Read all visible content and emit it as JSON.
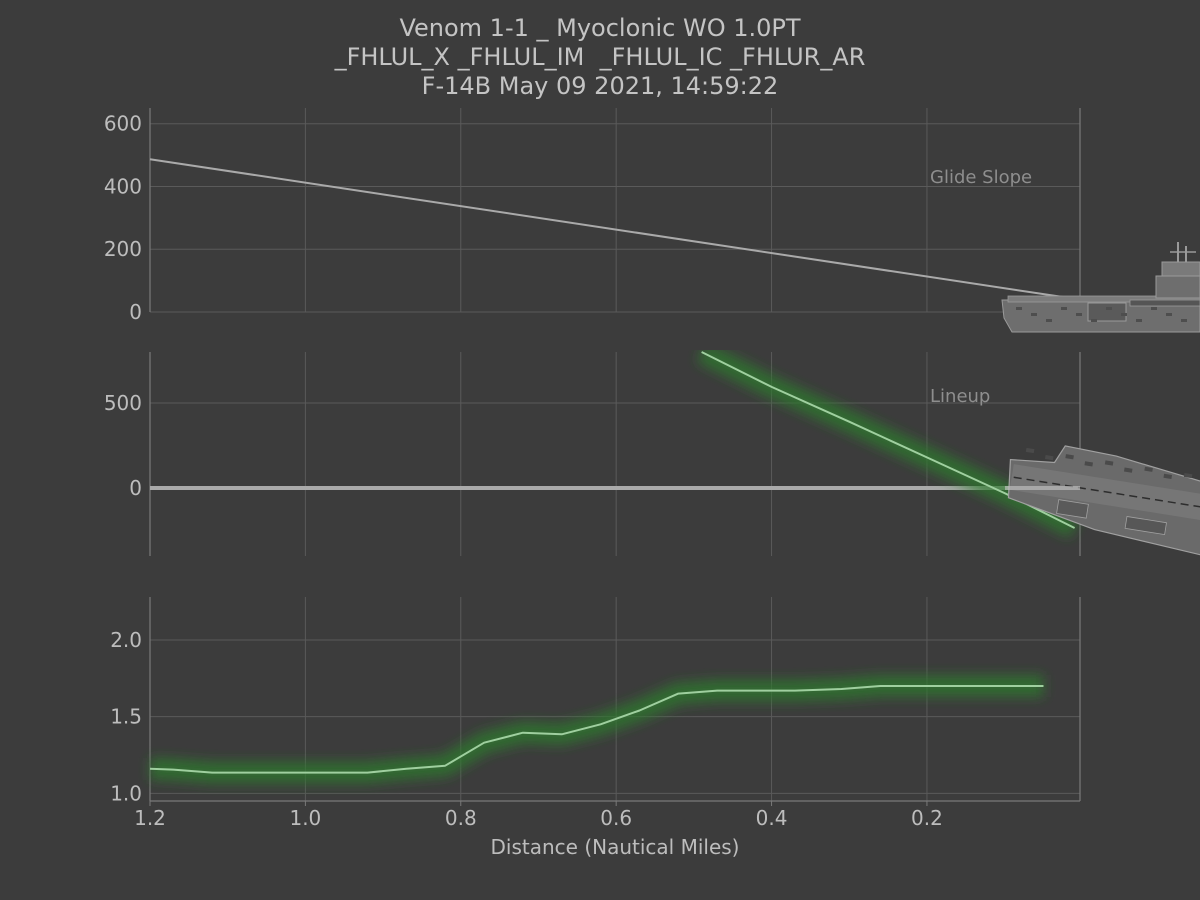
{
  "title_lines": [
    "Venom 1-1 _ Myoclonic WO 1.0PT",
    "_FHLUL_X _FHLUL_IM  _FHLUL_IC _FHLUR_AR",
    "F-14B May 09 2021, 14:59:22"
  ],
  "colors": {
    "background": "#3c3c3c",
    "grid": "#5a5a5a",
    "spine": "#7a7a7a",
    "text": "#bdbdbd",
    "reference_line": "#aaaaaa",
    "flight_path": "#9fcf9f",
    "flight_glow": "#2f7a2f",
    "ship": "#8a8a8a"
  },
  "chart_data": [
    {
      "type": "line",
      "annotation": "Glide Slope",
      "xlim": [
        1.2,
        0.0
      ],
      "ylim": [
        0,
        650
      ],
      "yticks": [
        0,
        200,
        400,
        600
      ],
      "grid": true,
      "series": [
        {
          "role": "reference",
          "x": [
            1.2,
            0.01
          ],
          "y": [
            487,
            42
          ]
        }
      ],
      "ship_icon": "carrier-side-view-icon"
    },
    {
      "type": "line",
      "annotation": "Lineup",
      "xlim": [
        1.2,
        0.0
      ],
      "ylim": [
        -400,
        800
      ],
      "yticks": [
        0,
        500
      ],
      "grid": true,
      "series": [
        {
          "role": "reference",
          "x": [
            1.2,
            0.01
          ],
          "y": [
            0,
            0
          ]
        },
        {
          "role": "flight",
          "x": [
            0.49,
            0.4,
            0.3,
            0.2,
            0.1,
            0.01
          ],
          "y": [
            800,
            595,
            390,
            180,
            -30,
            -235
          ]
        }
      ],
      "ship_icon": "carrier-top-view-icon"
    },
    {
      "type": "line",
      "annotation": "",
      "xlim": [
        1.2,
        0.0
      ],
      "ylim": [
        0.95,
        2.28
      ],
      "yticks": [
        1.0,
        1.5,
        2.0
      ],
      "xticks": [
        1.2,
        1.0,
        0.8,
        0.6,
        0.4,
        0.2
      ],
      "xtick_labels": [
        "1.2",
        "1.0",
        "0.8",
        "0.6",
        "0.4",
        "0.2"
      ],
      "xlabel": "Distance (Nautical Miles)",
      "grid": true,
      "series": [
        {
          "role": "flight",
          "x": [
            1.2,
            1.17,
            1.12,
            1.07,
            1.02,
            0.97,
            0.92,
            0.87,
            0.82,
            0.77,
            0.72,
            0.67,
            0.62,
            0.57,
            0.52,
            0.47,
            0.42,
            0.37,
            0.31,
            0.26,
            0.21,
            0.16,
            0.11,
            0.05
          ],
          "y": [
            1.16,
            1.155,
            1.135,
            1.135,
            1.135,
            1.135,
            1.135,
            1.16,
            1.18,
            1.33,
            1.395,
            1.385,
            1.45,
            1.54,
            1.65,
            1.67,
            1.67,
            1.67,
            1.68,
            1.7,
            1.7,
            1.7,
            1.7,
            1.7
          ]
        }
      ]
    }
  ]
}
